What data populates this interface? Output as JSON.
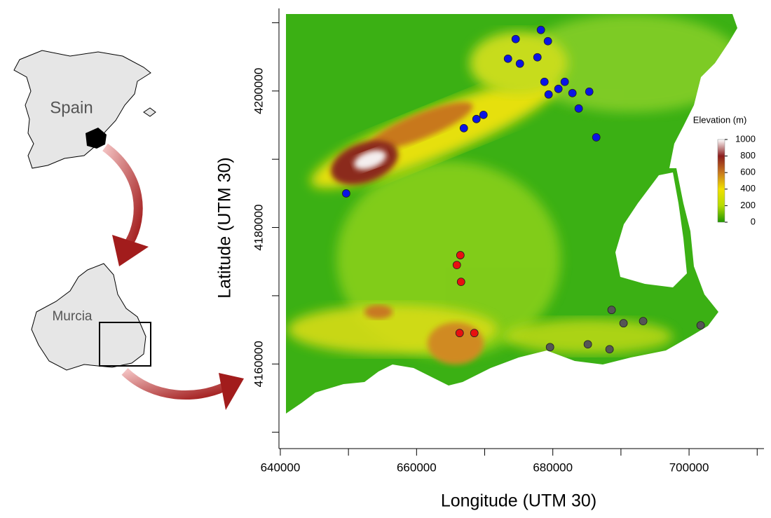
{
  "chart_data": {
    "type": "scatter",
    "xlabel": "Longitude (UTM 30)",
    "ylabel": "Latitude (UTM 30)",
    "xlim": [
      639800,
      711000
    ],
    "ylim": [
      4147600,
      4212100
    ],
    "xticks": [
      640000,
      660000,
      680000,
      700000
    ],
    "yticks": [
      4160000,
      4180000,
      4200000
    ],
    "minor_xticks": [
      650000,
      670000,
      690000,
      710000
    ],
    "minor_yticks": [
      4150000,
      4170000,
      4190000,
      4210000
    ],
    "series": [
      {
        "color": "#0a14e6",
        "x": [
          674550,
          678250,
          679280,
          673420,
          675170,
          677740,
          678770,
          679380,
          680820,
          681750,
          682880,
          685350,
          683800,
          686380,
          669820,
          668790,
          666940,
          649670
        ],
        "values": [
          4207610,
          4208950,
          4207300,
          4204730,
          4204010,
          4204940,
          4201340,
          4199490,
          4200310,
          4201340,
          4199690,
          4199900,
          4197430,
          4193210,
          4196500,
          4195890,
          4194550,
          4184990
        ]
      },
      {
        "color": "#e81010",
        "x": [
          666430,
          665910,
          666530,
          666320,
          668480
        ],
        "values": [
          4175940,
          4174500,
          4172030,
          4164530,
          4164530
        ]
      },
      {
        "color": "#555555",
        "x": [
          688630,
          690380,
          693260,
          701700,
          679590,
          685140,
          688330
        ],
        "values": [
          4167920,
          4165970,
          4166280,
          4165660,
          4162470,
          4162880,
          4162160
        ]
      }
    ],
    "colorbar": {
      "title": "Elevation (m)",
      "lim": [
        0,
        1000
      ],
      "ticks": [
        0,
        200,
        400,
        600,
        800,
        1000
      ],
      "colors": [
        "#1f9600",
        "#b6dc00",
        "#f0e000",
        "#c8781e",
        "#8b1c1c",
        "#ffffff"
      ]
    }
  },
  "inset": {
    "labels": [
      "Spain",
      "Murcia"
    ]
  }
}
